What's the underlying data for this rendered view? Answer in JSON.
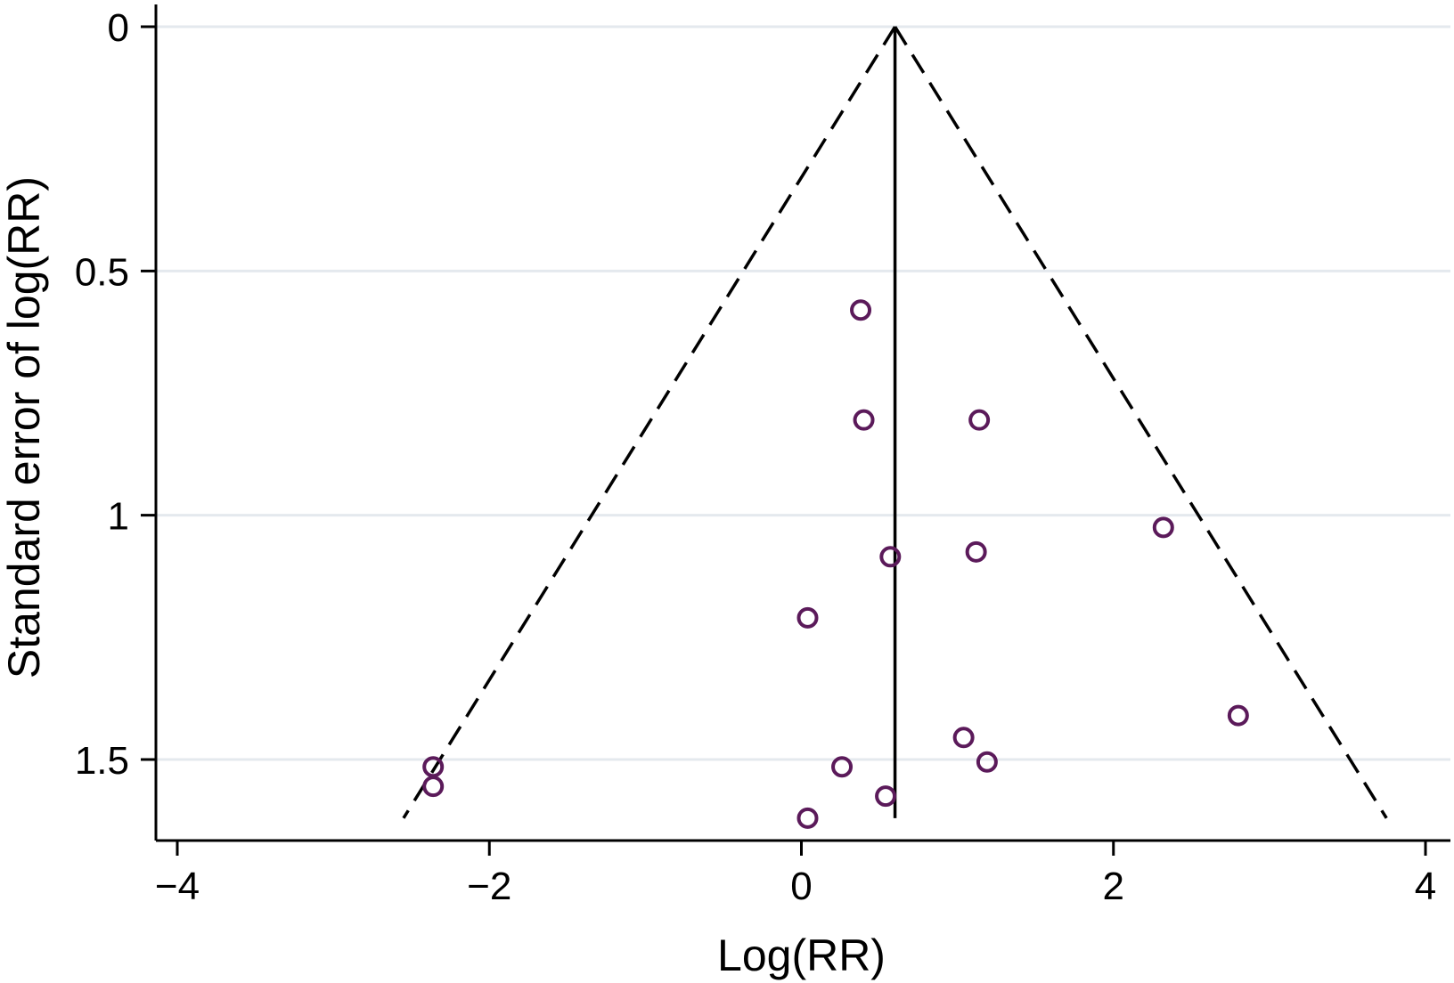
{
  "chart_data": {
    "type": "scatter",
    "title": "",
    "xlabel": "Log(RR)",
    "ylabel": "Standard error of  log(RR)",
    "xlim": [
      -4.15,
      4.15
    ],
    "ylim": [
      0,
      1.65
    ],
    "y_inverted": true,
    "x_ticks": [
      -4,
      -2,
      0,
      2,
      4
    ],
    "x_tick_labels": [
      "−4",
      "−2",
      "0",
      "2",
      "4"
    ],
    "y_ticks": [
      0,
      0.5,
      1,
      1.5
    ],
    "y_tick_labels": [
      "0",
      "0.5",
      "1",
      "1.5"
    ],
    "grid": "horizontal",
    "legend": "none",
    "pooled_estimate": 0.6,
    "pooled_line_se_range": [
      0,
      1.62
    ],
    "funnel_bounds": {
      "se_max": 1.62,
      "left_at_se_max": -2.55,
      "right_at_se_max": 3.75
    },
    "points": [
      {
        "x": 0.38,
        "y": 0.58
      },
      {
        "x": 0.4,
        "y": 0.805
      },
      {
        "x": 1.14,
        "y": 0.805
      },
      {
        "x": 2.32,
        "y": 1.025
      },
      {
        "x": 0.57,
        "y": 1.085
      },
      {
        "x": 1.12,
        "y": 1.075
      },
      {
        "x": 0.04,
        "y": 1.21
      },
      {
        "x": 2.8,
        "y": 1.41
      },
      {
        "x": 1.04,
        "y": 1.455
      },
      {
        "x": 1.19,
        "y": 1.505
      },
      {
        "x": 0.26,
        "y": 1.515
      },
      {
        "x": -2.36,
        "y": 1.515
      },
      {
        "x": -2.36,
        "y": 1.555
      },
      {
        "x": 0.54,
        "y": 1.575
      },
      {
        "x": 0.04,
        "y": 1.62
      }
    ],
    "colors": {
      "points": "#5b1a5a",
      "grid": "#e4e9ee",
      "axis": "#000000"
    }
  }
}
